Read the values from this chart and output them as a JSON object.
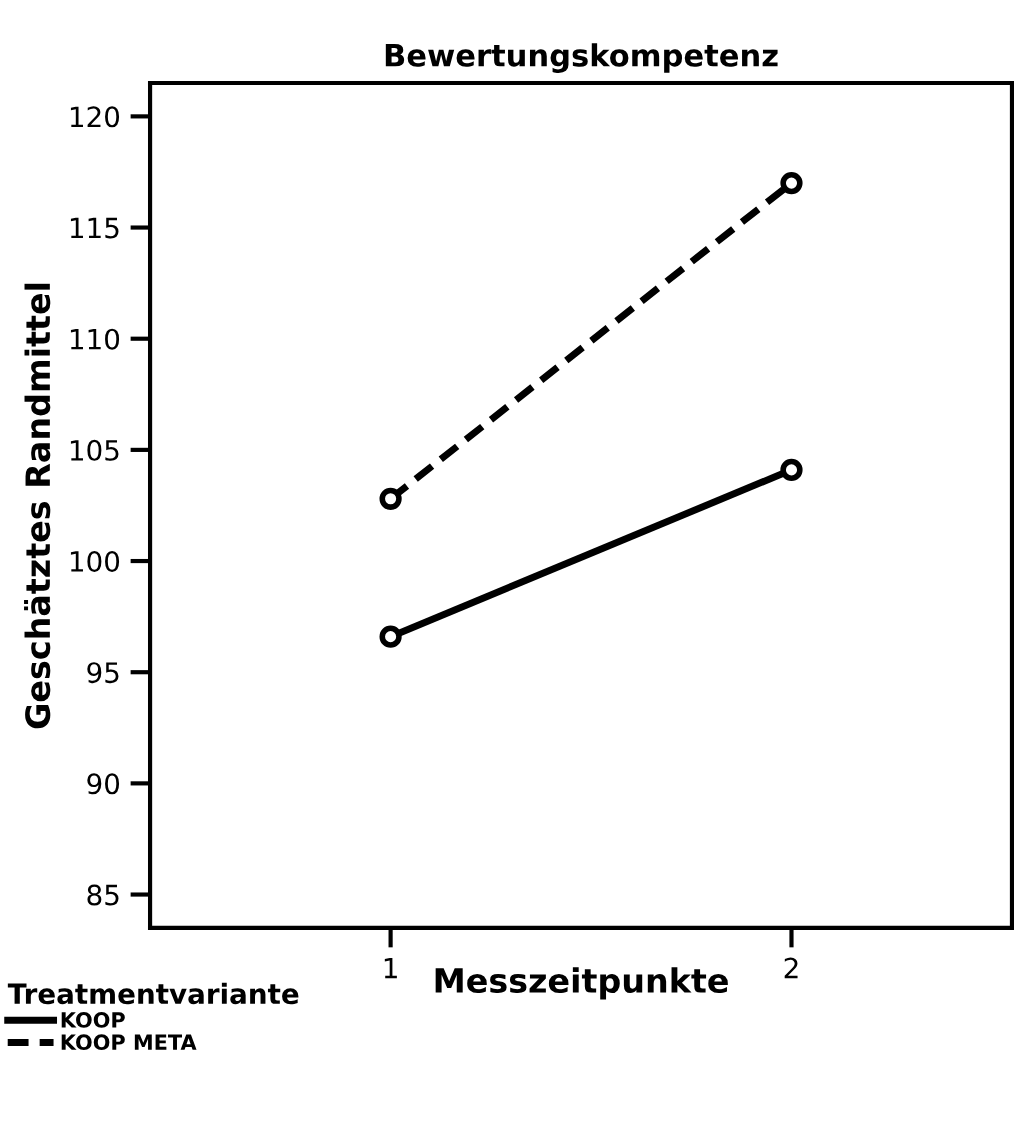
{
  "chart_data": {
    "type": "line",
    "title": "Bewertungskompetenz",
    "xlabel": "Messzeitpunkte",
    "ylabel": "Geschätztes Randmittel",
    "legend_title": "Treatmentvariante",
    "categories": [
      "1",
      "2"
    ],
    "series": [
      {
        "name": "KOOP",
        "color": "#000000",
        "values": [
          96.6,
          104.1
        ],
        "line_style": "solid"
      },
      {
        "name": "KOOP META",
        "color": "#000000",
        "values": [
          102.8,
          117.0
        ],
        "line_style": "dashed"
      }
    ],
    "ylim": [
      83.5,
      121.5
    ],
    "yticks": [
      85,
      90,
      95,
      100,
      105,
      110,
      115,
      120
    ],
    "marker": "circle",
    "grid": false,
    "legend": "bottom left"
  }
}
